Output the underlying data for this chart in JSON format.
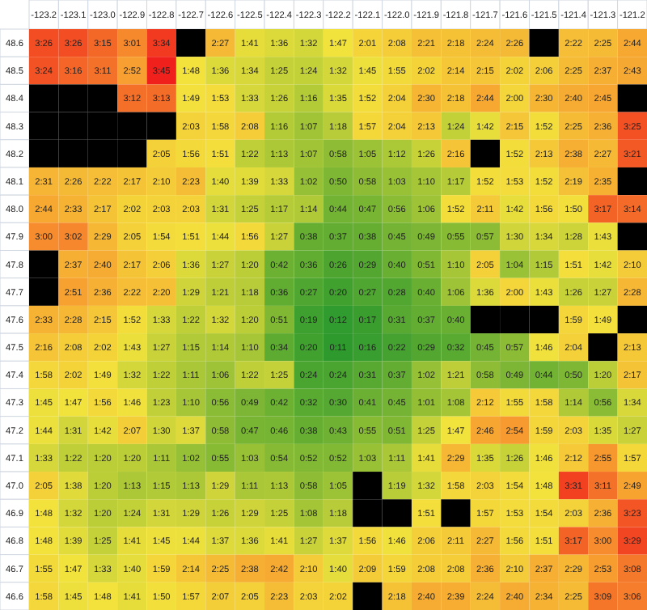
{
  "chart_data": {
    "type": "heatmap",
    "categories": [
      "-123.2",
      "-123.1",
      "-123.0",
      "-122.9",
      "-122.8",
      "-122.7",
      "-122.6",
      "-122.5",
      "-122.4",
      "-122.3",
      "-122.2",
      "-122.1",
      "-122.0",
      "-121.9",
      "-121.8",
      "-121.7",
      "-121.6",
      "-121.5",
      "-121.4",
      "-121.3",
      "-121.2"
    ],
    "y_categories": [
      "48.6",
      "48.5",
      "48.4",
      "48.3",
      "48.2",
      "48.1",
      "48.0",
      "47.9",
      "47.8",
      "47.7",
      "47.6",
      "47.5",
      "47.4",
      "47.3",
      "47.2",
      "47.1",
      "47.0",
      "46.9",
      "46.8",
      "46.7",
      "46.6"
    ],
    "cells": [
      [
        206,
        206,
        195,
        181,
        214,
        null,
        147,
        101,
        96,
        92,
        107,
        121,
        128,
        141,
        138,
        144,
        146,
        null,
        142,
        145,
        164
      ],
      [
        204,
        196,
        191,
        172,
        225,
        108,
        96,
        94,
        85,
        84,
        92,
        105,
        115,
        122,
        134,
        135,
        122,
        126,
        145,
        157,
        163
      ],
      [
        null,
        null,
        null,
        192,
        193,
        109,
        113,
        93,
        86,
        76,
        95,
        112,
        124,
        150,
        138,
        164,
        120,
        150,
        160,
        165,
        null
      ],
      [
        null,
        null,
        null,
        null,
        null,
        123,
        118,
        128,
        76,
        67,
        78,
        117,
        124,
        133,
        84,
        102,
        135,
        112,
        145,
        156,
        205
      ],
      [
        null,
        null,
        null,
        null,
        125,
        116,
        111,
        82,
        73,
        67,
        58,
        65,
        72,
        86,
        136,
        null,
        112,
        133,
        158,
        147,
        201
      ],
      [
        151,
        146,
        142,
        137,
        130,
        143,
        100,
        99,
        93,
        62,
        50,
        58,
        63,
        70,
        77,
        112,
        113,
        112,
        139,
        155,
        null
      ],
      [
        164,
        153,
        137,
        122,
        123,
        123,
        91,
        85,
        77,
        74,
        44,
        47,
        56,
        66,
        112,
        131,
        102,
        116,
        110,
        197,
        194
      ],
      [
        180,
        182,
        149,
        125,
        114,
        111,
        104,
        116,
        87,
        38,
        37,
        38,
        45,
        49,
        55,
        57,
        90,
        94,
        88,
        103,
        null
      ],
      [
        null,
        157,
        160,
        137,
        126,
        96,
        87,
        80,
        42,
        36,
        26,
        29,
        40,
        51,
        70,
        125,
        64,
        75,
        111,
        102,
        130
      ],
      [
        null,
        171,
        156,
        142,
        140,
        89,
        81,
        78,
        36,
        27,
        20,
        27,
        28,
        40,
        66,
        96,
        120,
        103,
        86,
        87,
        148
      ],
      [
        153,
        148,
        135,
        112,
        93,
        82,
        92,
        80,
        51,
        19,
        12,
        17,
        31,
        37,
        40,
        null,
        null,
        null,
        119,
        109,
        null
      ],
      [
        136,
        128,
        122,
        103,
        87,
        75,
        74,
        70,
        34,
        20,
        11,
        16,
        22,
        29,
        32,
        45,
        57,
        106,
        124,
        null,
        133
      ],
      [
        118,
        122,
        109,
        92,
        82,
        71,
        66,
        82,
        85,
        24,
        24,
        31,
        37,
        62,
        81,
        58,
        49,
        44,
        50,
        80,
        137
      ],
      [
        105,
        107,
        116,
        106,
        83,
        70,
        56,
        49,
        42,
        32,
        30,
        41,
        45,
        61,
        68,
        132,
        115,
        118,
        74,
        56,
        94
      ],
      [
        104,
        91,
        102,
        127,
        90,
        97,
        58,
        47,
        46,
        38,
        43,
        55,
        51,
        85,
        107,
        166,
        174,
        119,
        123,
        95,
        87
      ],
      [
        93,
        82,
        80,
        80,
        71,
        62,
        55,
        63,
        54,
        52,
        52,
        63,
        71,
        101,
        149,
        95,
        86,
        106,
        132,
        175,
        117
      ],
      [
        125,
        98,
        80,
        73,
        75,
        73,
        89,
        71,
        73,
        58,
        65,
        null,
        79,
        92,
        118,
        123,
        114,
        108,
        211,
        191,
        169
      ],
      [
        108,
        92,
        80,
        84,
        91,
        89,
        86,
        89,
        85,
        68,
        78,
        null,
        null,
        111,
        null,
        117,
        113,
        114,
        123,
        156,
        203
      ],
      [
        108,
        99,
        85,
        101,
        105,
        104,
        97,
        96,
        101,
        87,
        97,
        116,
        106,
        126,
        131,
        147,
        116,
        111,
        197,
        180,
        209
      ],
      [
        115,
        107,
        93,
        100,
        119,
        134,
        145,
        158,
        162,
        130,
        100,
        129,
        119,
        128,
        128,
        156,
        130,
        157,
        149,
        173,
        188
      ],
      [
        118,
        105,
        108,
        101,
        110,
        117,
        127,
        125,
        143,
        123,
        122,
        null,
        138,
        160,
        159,
        144,
        160,
        154,
        145,
        189,
        186
      ]
    ],
    "cell_labels": [
      [
        "3:26",
        "3:26",
        "3:15",
        "3:01",
        "3:34",
        null,
        "2:27",
        "1:41",
        "1:36",
        "1:32",
        "1:47",
        "2:01",
        "2:08",
        "2:21",
        "2:18",
        "2:24",
        "2:26",
        null,
        "2:22",
        "2:25",
        "2:44"
      ],
      [
        "3:24",
        "3:16",
        "3:11",
        "2:52",
        "3:45",
        "1:48",
        "1:36",
        "1:34",
        "1:25",
        "1:24",
        "1:32",
        "1:45",
        "1:55",
        "2:02",
        "2:14",
        "2:15",
        "2:02",
        "2:06",
        "2:25",
        "2:37",
        "2:43"
      ],
      [
        null,
        null,
        null,
        "3:12",
        "3:13",
        "1:49",
        "1:53",
        "1:33",
        "1:26",
        "1:16",
        "1:35",
        "1:52",
        "2:04",
        "2:30",
        "2:18",
        "2:44",
        "2:00",
        "2:30",
        "2:40",
        "2:45",
        null
      ],
      [
        null,
        null,
        null,
        null,
        null,
        "2:03",
        "1:58",
        "2:08",
        "1:16",
        "1:07",
        "1:18",
        "1:57",
        "2:04",
        "2:13",
        "1:24",
        "1:42",
        "2:15",
        "1:52",
        "2:25",
        "2:36",
        "3:25"
      ],
      [
        null,
        null,
        null,
        null,
        "2:05",
        "1:56",
        "1:51",
        "1:22",
        "1:13",
        "1:07",
        "0:58",
        "1:05",
        "1:12",
        "1:26",
        "2:16",
        null,
        "1:52",
        "2:13",
        "2:38",
        "2:27",
        "3:21"
      ],
      [
        "2:31",
        "2:26",
        "2:22",
        "2:17",
        "2:10",
        "2:23",
        "1:40",
        "1:39",
        "1:33",
        "1:02",
        "0:50",
        "0:58",
        "1:03",
        "1:10",
        "1:17",
        "1:52",
        "1:53",
        "1:52",
        "2:19",
        "2:35",
        null
      ],
      [
        "2:44",
        "2:33",
        "2:17",
        "2:02",
        "2:03",
        "2:03",
        "1:31",
        "1:25",
        "1:17",
        "1:14",
        "0:44",
        "0:47",
        "0:56",
        "1:06",
        "1:52",
        "2:11",
        "1:42",
        "1:56",
        "1:50",
        "3:17",
        "3:14"
      ],
      [
        "3:00",
        "3:02",
        "2:29",
        "2:05",
        "1:54",
        "1:51",
        "1:44",
        "1:56",
        "1:27",
        "0:38",
        "0:37",
        "0:38",
        "0:45",
        "0:49",
        "0:55",
        "0:57",
        "1:30",
        "1:34",
        "1:28",
        "1:43",
        null
      ],
      [
        null,
        "2:37",
        "2:40",
        "2:17",
        "2:06",
        "1:36",
        "1:27",
        "1:20",
        "0:42",
        "0:36",
        "0:26",
        "0:29",
        "0:40",
        "0:51",
        "1:10",
        "2:05",
        "1:04",
        "1:15",
        "1:51",
        "1:42",
        "2:10"
      ],
      [
        null,
        "2:51",
        "2:36",
        "2:22",
        "2:20",
        "1:29",
        "1:21",
        "1:18",
        "0:36",
        "0:27",
        "0:20",
        "0:27",
        "0:28",
        "0:40",
        "1:06",
        "1:36",
        "2:00",
        "1:43",
        "1:26",
        "1:27",
        "2:28"
      ],
      [
        "2:33",
        "2:28",
        "2:15",
        "1:52",
        "1:33",
        "1:22",
        "1:32",
        "1:20",
        "0:51",
        "0:19",
        "0:12",
        "0:17",
        "0:31",
        "0:37",
        "0:40",
        null,
        null,
        null,
        "1:59",
        "1:49",
        null
      ],
      [
        "2:16",
        "2:08",
        "2:02",
        "1:43",
        "1:27",
        "1:15",
        "1:14",
        "1:10",
        "0:34",
        "0:20",
        "0:11",
        "0:16",
        "0:22",
        "0:29",
        "0:32",
        "0:45",
        "0:57",
        "1:46",
        "2:04",
        null,
        "2:13"
      ],
      [
        "1:58",
        "2:02",
        "1:49",
        "1:32",
        "1:22",
        "1:11",
        "1:06",
        "1:22",
        "1:25",
        "0:24",
        "0:24",
        "0:31",
        "0:37",
        "1:02",
        "1:21",
        "0:58",
        "0:49",
        "0:44",
        "0:50",
        "1:20",
        "2:17"
      ],
      [
        "1:45",
        "1:47",
        "1:56",
        "1:46",
        "1:23",
        "1:10",
        "0:56",
        "0:49",
        "0:42",
        "0:32",
        "0:30",
        "0:41",
        "0:45",
        "1:01",
        "1:08",
        "2:12",
        "1:55",
        "1:58",
        "1:14",
        "0:56",
        "1:34"
      ],
      [
        "1:44",
        "1:31",
        "1:42",
        "2:07",
        "1:30",
        "1:37",
        "0:58",
        "0:47",
        "0:46",
        "0:38",
        "0:43",
        "0:55",
        "0:51",
        "1:25",
        "1:47",
        "2:46",
        "2:54",
        "1:59",
        "2:03",
        "1:35",
        "1:27"
      ],
      [
        "1:33",
        "1:22",
        "1:20",
        "1:20",
        "1:11",
        "1:02",
        "0:55",
        "1:03",
        "0:54",
        "0:52",
        "0:52",
        "1:03",
        "1:11",
        "1:41",
        "2:29",
        "1:35",
        "1:26",
        "1:46",
        "2:12",
        "2:55",
        "1:57"
      ],
      [
        "2:05",
        "1:38",
        "1:20",
        "1:13",
        "1:15",
        "1:13",
        "1:29",
        "1:11",
        "1:13",
        "0:58",
        "1:05",
        null,
        "1:19",
        "1:32",
        "1:58",
        "2:03",
        "1:54",
        "1:48",
        "3:31",
        "3:11",
        "2:49"
      ],
      [
        "1:48",
        "1:32",
        "1:20",
        "1:24",
        "1:31",
        "1:29",
        "1:26",
        "1:29",
        "1:25",
        "1:08",
        "1:18",
        null,
        null,
        "1:51",
        null,
        "1:57",
        "1:53",
        "1:54",
        "2:03",
        "2:36",
        "3:23"
      ],
      [
        "1:48",
        "1:39",
        "1:25",
        "1:41",
        "1:45",
        "1:44",
        "1:37",
        "1:36",
        "1:41",
        "1:27",
        "1:37",
        "1:56",
        "1:46",
        "2:06",
        "2:11",
        "2:27",
        "1:56",
        "1:51",
        "3:17",
        "3:00",
        "3:29"
      ],
      [
        "1:55",
        "1:47",
        "1:33",
        "1:40",
        "1:59",
        "2:14",
        "2:25",
        "2:38",
        "2:42",
        "2:10",
        "1:40",
        "2:09",
        "1:59",
        "2:08",
        "2:08",
        "2:36",
        "2:10",
        "2:37",
        "2:29",
        "2:53",
        "3:08"
      ],
      [
        "1:58",
        "1:45",
        "1:48",
        "1:41",
        "1:50",
        "1:57",
        "2:07",
        "2:05",
        "2:23",
        "2:03",
        "2:02",
        null,
        "2:18",
        "2:40",
        "2:39",
        "2:24",
        "2:40",
        "2:34",
        "2:25",
        "3:09",
        "3:06"
      ]
    ]
  }
}
